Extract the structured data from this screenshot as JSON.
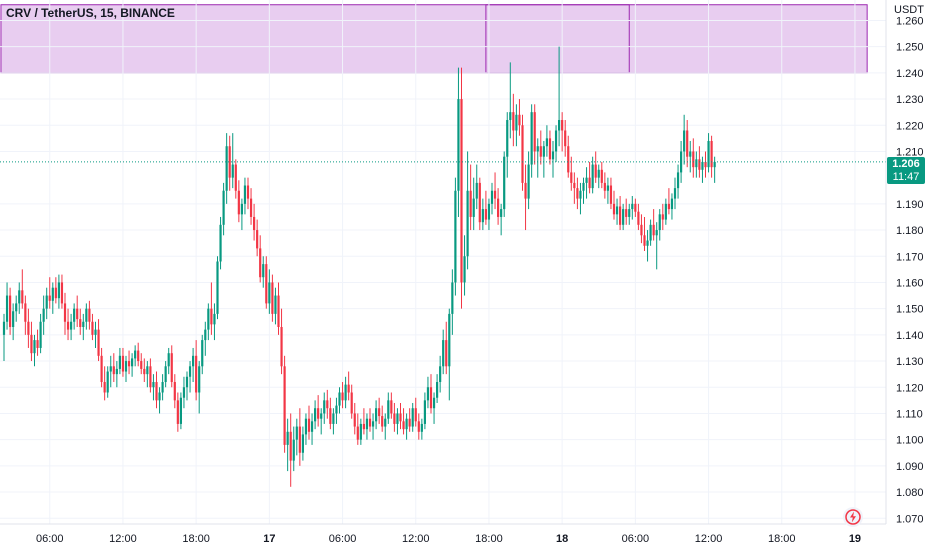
{
  "header": {
    "symbol_title": "CRV / TetherUS, 15, BINANCE",
    "currency": "USDT"
  },
  "price_badge": {
    "value": "1.206",
    "countdown": "11:47"
  },
  "colors": {
    "up": "#089981",
    "down": "#f23645",
    "zone_fill": "#e8cdf0",
    "zone_line": "#9c27b0",
    "grid": "#f0f3fa",
    "last_price_line": "#089981"
  },
  "icons": {
    "logo": "tradingview-lightning-icon"
  },
  "chart_data": {
    "type": "candlestick",
    "title": "CRV / TetherUS, 15, BINANCE",
    "ylim": [
      1.065,
      1.266
    ],
    "y_ticks": [
      "1.260",
      "1.250",
      "1.240",
      "1.230",
      "1.220",
      "1.210",
      "1.190",
      "1.180",
      "1.170",
      "1.160",
      "1.150",
      "1.140",
      "1.130",
      "1.120",
      "1.110",
      "1.100",
      "1.090",
      "1.080",
      "1.070"
    ],
    "x_ticks": [
      {
        "label": "06:00",
        "bar": 15,
        "major": false
      },
      {
        "label": "12:00",
        "bar": 39,
        "major": false
      },
      {
        "label": "18:00",
        "bar": 63,
        "major": false
      },
      {
        "label": "17",
        "bar": 87,
        "major": true
      },
      {
        "label": "06:00",
        "bar": 111,
        "major": false
      },
      {
        "label": "12:00",
        "bar": 135,
        "major": false
      },
      {
        "label": "18:00",
        "bar": 159,
        "major": false
      },
      {
        "label": "18",
        "bar": 183,
        "major": true
      },
      {
        "label": "06:00",
        "bar": 207,
        "major": false
      },
      {
        "label": "12:00",
        "bar": 231,
        "major": false
      },
      {
        "label": "18:00",
        "bar": 255,
        "major": false
      },
      {
        "label": "19",
        "bar": 279,
        "major": true
      }
    ],
    "last_price": 1.206,
    "zones": [
      {
        "y_from": 1.24,
        "y_to": 1.266,
        "bar_from": -1,
        "bar_to": 283
      },
      {
        "y_from": 1.24,
        "y_to": 1.266,
        "bar_from": 158,
        "bar_to": 205
      }
    ],
    "candles": [
      [
        1.14,
        1.148,
        1.13,
        1.145
      ],
      [
        1.145,
        1.16,
        1.142,
        1.155
      ],
      [
        1.155,
        1.158,
        1.14,
        1.143
      ],
      [
        1.143,
        1.152,
        1.138,
        1.149
      ],
      [
        1.149,
        1.155,
        1.145,
        1.152
      ],
      [
        1.152,
        1.16,
        1.148,
        1.157
      ],
      [
        1.157,
        1.165,
        1.15,
        1.152
      ],
      [
        1.152,
        1.155,
        1.14,
        1.145
      ],
      [
        1.145,
        1.15,
        1.135,
        1.14
      ],
      [
        1.14,
        1.145,
        1.13,
        1.133
      ],
      [
        1.133,
        1.14,
        1.128,
        1.138
      ],
      [
        1.138,
        1.142,
        1.132,
        1.135
      ],
      [
        1.135,
        1.148,
        1.133,
        1.145
      ],
      [
        1.145,
        1.155,
        1.14,
        1.15
      ],
      [
        1.15,
        1.158,
        1.146,
        1.155
      ],
      [
        1.155,
        1.162,
        1.15,
        1.153
      ],
      [
        1.153,
        1.16,
        1.148,
        1.158
      ],
      [
        1.158,
        1.162,
        1.152,
        1.154
      ],
      [
        1.154,
        1.163,
        1.15,
        1.16
      ],
      [
        1.16,
        1.163,
        1.15,
        1.152
      ],
      [
        1.152,
        1.156,
        1.14,
        1.145
      ],
      [
        1.145,
        1.15,
        1.138,
        1.142
      ],
      [
        1.142,
        1.148,
        1.138,
        1.145
      ],
      [
        1.145,
        1.152,
        1.142,
        1.15
      ],
      [
        1.15,
        1.155,
        1.143,
        1.146
      ],
      [
        1.146,
        1.15,
        1.14,
        1.143
      ],
      [
        1.143,
        1.148,
        1.138,
        1.145
      ],
      [
        1.145,
        1.152,
        1.142,
        1.15
      ],
      [
        1.15,
        1.153,
        1.142,
        1.145
      ],
      [
        1.145,
        1.148,
        1.138,
        1.14
      ],
      [
        1.14,
        1.145,
        1.135,
        1.142
      ],
      [
        1.142,
        1.146,
        1.13,
        1.132
      ],
      [
        1.132,
        1.135,
        1.12,
        1.122
      ],
      [
        1.122,
        1.128,
        1.115,
        1.118
      ],
      [
        1.118,
        1.128,
        1.116,
        1.126
      ],
      [
        1.126,
        1.132,
        1.12,
        1.128
      ],
      [
        1.128,
        1.133,
        1.122,
        1.125
      ],
      [
        1.125,
        1.13,
        1.12,
        1.127
      ],
      [
        1.127,
        1.135,
        1.125,
        1.132
      ],
      [
        1.132,
        1.135,
        1.124,
        1.126
      ],
      [
        1.126,
        1.132,
        1.122,
        1.13
      ],
      [
        1.13,
        1.134,
        1.125,
        1.128
      ],
      [
        1.128,
        1.133,
        1.124,
        1.131
      ],
      [
        1.131,
        1.136,
        1.128,
        1.134
      ],
      [
        1.134,
        1.137,
        1.128,
        1.13
      ],
      [
        1.13,
        1.133,
        1.125,
        1.127
      ],
      [
        1.127,
        1.131,
        1.122,
        1.125
      ],
      [
        1.125,
        1.13,
        1.12,
        1.128
      ],
      [
        1.128,
        1.131,
        1.118,
        1.12
      ],
      [
        1.12,
        1.125,
        1.115,
        1.122
      ],
      [
        1.122,
        1.126,
        1.112,
        1.115
      ],
      [
        1.115,
        1.12,
        1.11,
        1.118
      ],
      [
        1.118,
        1.125,
        1.115,
        1.122
      ],
      [
        1.122,
        1.13,
        1.12,
        1.128
      ],
      [
        1.128,
        1.135,
        1.125,
        1.133
      ],
      [
        1.133,
        1.136,
        1.12,
        1.122
      ],
      [
        1.122,
        1.125,
        1.112,
        1.115
      ],
      [
        1.115,
        1.118,
        1.103,
        1.106
      ],
      [
        1.106,
        1.118,
        1.104,
        1.116
      ],
      [
        1.116,
        1.124,
        1.112,
        1.12
      ],
      [
        1.12,
        1.126,
        1.115,
        1.124
      ],
      [
        1.124,
        1.13,
        1.118,
        1.128
      ],
      [
        1.128,
        1.135,
        1.122,
        1.132
      ],
      [
        1.132,
        1.138,
        1.115,
        1.118
      ],
      [
        1.118,
        1.13,
        1.11,
        1.128
      ],
      [
        1.128,
        1.14,
        1.125,
        1.138
      ],
      [
        1.138,
        1.145,
        1.132,
        1.142
      ],
      [
        1.142,
        1.152,
        1.138,
        1.15
      ],
      [
        1.15,
        1.16,
        1.14,
        1.144
      ],
      [
        1.144,
        1.152,
        1.138,
        1.148
      ],
      [
        1.148,
        1.17,
        1.146,
        1.168
      ],
      [
        1.168,
        1.185,
        1.165,
        1.182
      ],
      [
        1.182,
        1.198,
        1.178,
        1.195
      ],
      [
        1.195,
        1.217,
        1.19,
        1.212
      ],
      [
        1.212,
        1.216,
        1.195,
        1.2
      ],
      [
        1.2,
        1.217,
        1.196,
        1.205
      ],
      [
        1.205,
        1.207,
        1.192,
        1.195
      ],
      [
        1.195,
        1.199,
        1.183,
        1.186
      ],
      [
        1.186,
        1.192,
        1.18,
        1.19
      ],
      [
        1.19,
        1.2,
        1.186,
        1.197
      ],
      [
        1.197,
        1.2,
        1.188,
        1.192
      ],
      [
        1.192,
        1.196,
        1.182,
        1.185
      ],
      [
        1.185,
        1.19,
        1.176,
        1.18
      ],
      [
        1.18,
        1.184,
        1.17,
        1.173
      ],
      [
        1.173,
        1.178,
        1.16,
        1.162
      ],
      [
        1.162,
        1.17,
        1.158,
        1.167
      ],
      [
        1.167,
        1.17,
        1.15,
        1.152
      ],
      [
        1.152,
        1.165,
        1.148,
        1.16
      ],
      [
        1.16,
        1.163,
        1.145,
        1.148
      ],
      [
        1.148,
        1.158,
        1.144,
        1.155
      ],
      [
        1.155,
        1.16,
        1.14,
        1.143
      ],
      [
        1.143,
        1.15,
        1.125,
        1.128
      ],
      [
        1.128,
        1.132,
        1.095,
        1.098
      ],
      [
        1.098,
        1.108,
        1.088,
        1.103
      ],
      [
        1.103,
        1.11,
        1.082,
        1.092
      ],
      [
        1.092,
        1.105,
        1.088,
        1.1
      ],
      [
        1.1,
        1.108,
        1.094,
        1.105
      ],
      [
        1.105,
        1.112,
        1.09,
        1.095
      ],
      [
        1.095,
        1.105,
        1.092,
        1.102
      ],
      [
        1.102,
        1.11,
        1.098,
        1.108
      ],
      [
        1.108,
        1.113,
        1.1,
        1.103
      ],
      [
        1.103,
        1.11,
        1.098,
        1.107
      ],
      [
        1.107,
        1.115,
        1.104,
        1.112
      ],
      [
        1.112,
        1.117,
        1.105,
        1.108
      ],
      [
        1.108,
        1.112,
        1.102,
        1.11
      ],
      [
        1.11,
        1.118,
        1.106,
        1.115
      ],
      [
        1.115,
        1.119,
        1.108,
        1.112
      ],
      [
        1.112,
        1.116,
        1.104,
        1.106
      ],
      [
        1.106,
        1.112,
        1.102,
        1.11
      ],
      [
        1.11,
        1.116,
        1.106,
        1.113
      ],
      [
        1.113,
        1.12,
        1.11,
        1.118
      ],
      [
        1.118,
        1.122,
        1.112,
        1.115
      ],
      [
        1.115,
        1.124,
        1.112,
        1.121
      ],
      [
        1.121,
        1.126,
        1.115,
        1.118
      ],
      [
        1.118,
        1.121,
        1.108,
        1.11
      ],
      [
        1.11,
        1.114,
        1.102,
        1.105
      ],
      [
        1.105,
        1.11,
        1.098,
        1.1
      ],
      [
        1.1,
        1.108,
        1.098,
        1.106
      ],
      [
        1.106,
        1.112,
        1.102,
        1.104
      ],
      [
        1.104,
        1.11,
        1.1,
        1.108
      ],
      [
        1.108,
        1.112,
        1.103,
        1.105
      ],
      [
        1.105,
        1.11,
        1.1,
        1.107
      ],
      [
        1.107,
        1.115,
        1.104,
        1.112
      ],
      [
        1.112,
        1.116,
        1.106,
        1.109
      ],
      [
        1.109,
        1.113,
        1.103,
        1.105
      ],
      [
        1.105,
        1.11,
        1.1,
        1.108
      ],
      [
        1.108,
        1.118,
        1.106,
        1.115
      ],
      [
        1.115,
        1.118,
        1.108,
        1.11
      ],
      [
        1.11,
        1.114,
        1.103,
        1.106
      ],
      [
        1.106,
        1.112,
        1.102,
        1.11
      ],
      [
        1.11,
        1.114,
        1.104,
        1.107
      ],
      [
        1.107,
        1.112,
        1.102,
        1.104
      ],
      [
        1.104,
        1.11,
        1.1,
        1.108
      ],
      [
        1.108,
        1.112,
        1.103,
        1.105
      ],
      [
        1.105,
        1.114,
        1.103,
        1.112
      ],
      [
        1.112,
        1.116,
        1.105,
        1.107
      ],
      [
        1.107,
        1.11,
        1.1,
        1.103
      ],
      [
        1.103,
        1.108,
        1.1,
        1.106
      ],
      [
        1.106,
        1.118,
        1.104,
        1.115
      ],
      [
        1.115,
        1.124,
        1.112,
        1.12
      ],
      [
        1.12,
        1.125,
        1.11,
        1.112
      ],
      [
        1.112,
        1.118,
        1.106,
        1.116
      ],
      [
        1.116,
        1.125,
        1.114,
        1.122
      ],
      [
        1.122,
        1.132,
        1.118,
        1.128
      ],
      [
        1.128,
        1.142,
        1.125,
        1.138
      ],
      [
        1.138,
        1.145,
        1.125,
        1.128
      ],
      [
        1.128,
        1.15,
        1.115,
        1.148
      ],
      [
        1.148,
        1.165,
        1.14,
        1.16
      ],
      [
        1.16,
        1.2,
        1.155,
        1.195
      ],
      [
        1.195,
        1.242,
        1.185,
        1.23
      ],
      [
        1.23,
        1.242,
        1.15,
        1.16
      ],
      [
        1.16,
        1.178,
        1.155,
        1.17
      ],
      [
        1.17,
        1.21,
        1.165,
        1.195
      ],
      [
        1.195,
        1.205,
        1.18,
        1.185
      ],
      [
        1.185,
        1.2,
        1.18,
        1.192
      ],
      [
        1.192,
        1.205,
        1.188,
        1.198
      ],
      [
        1.198,
        1.2,
        1.18,
        1.183
      ],
      [
        1.183,
        1.192,
        1.18,
        1.188
      ],
      [
        1.188,
        1.195,
        1.182,
        1.184
      ],
      [
        1.184,
        1.192,
        1.18,
        1.19
      ],
      [
        1.19,
        1.198,
        1.186,
        1.195
      ],
      [
        1.195,
        1.202,
        1.188,
        1.192
      ],
      [
        1.192,
        1.196,
        1.182,
        1.185
      ],
      [
        1.185,
        1.19,
        1.178,
        1.188
      ],
      [
        1.188,
        1.21,
        1.185,
        1.208
      ],
      [
        1.208,
        1.225,
        1.2,
        1.222
      ],
      [
        1.222,
        1.244,
        1.215,
        1.225
      ],
      [
        1.225,
        1.232,
        1.212,
        1.218
      ],
      [
        1.218,
        1.228,
        1.212,
        1.224
      ],
      [
        1.224,
        1.23,
        1.216,
        1.22
      ],
      [
        1.22,
        1.224,
        1.195,
        1.198
      ],
      [
        1.198,
        1.205,
        1.18,
        1.192
      ],
      [
        1.192,
        1.21,
        1.188,
        1.205
      ],
      [
        1.205,
        1.228,
        1.2,
        1.225
      ],
      [
        1.225,
        1.228,
        1.205,
        1.21
      ],
      [
        1.21,
        1.215,
        1.2,
        1.212
      ],
      [
        1.212,
        1.218,
        1.205,
        1.208
      ],
      [
        1.208,
        1.214,
        1.2,
        1.212
      ],
      [
        1.212,
        1.22,
        1.208,
        1.215
      ],
      [
        1.215,
        1.218,
        1.205,
        1.207
      ],
      [
        1.207,
        1.214,
        1.2,
        1.21
      ],
      [
        1.21,
        1.22,
        1.206,
        1.218
      ],
      [
        1.218,
        1.25,
        1.212,
        1.222
      ],
      [
        1.222,
        1.225,
        1.21,
        1.218
      ],
      [
        1.218,
        1.222,
        1.208,
        1.212
      ],
      [
        1.212,
        1.216,
        1.2,
        1.202
      ],
      [
        1.202,
        1.208,
        1.195,
        1.198
      ],
      [
        1.198,
        1.202,
        1.19,
        1.196
      ],
      [
        1.196,
        1.2,
        1.188,
        1.192
      ],
      [
        1.192,
        1.198,
        1.186,
        1.195
      ],
      [
        1.195,
        1.2,
        1.19,
        1.198
      ],
      [
        1.198,
        1.204,
        1.192,
        1.2
      ],
      [
        1.2,
        1.206,
        1.194,
        1.196
      ],
      [
        1.196,
        1.208,
        1.194,
        1.205
      ],
      [
        1.205,
        1.21,
        1.198,
        1.2
      ],
      [
        1.2,
        1.205,
        1.196,
        1.203
      ],
      [
        1.203,
        1.206,
        1.196,
        1.198
      ],
      [
        1.198,
        1.202,
        1.192,
        1.195
      ],
      [
        1.195,
        1.2,
        1.19,
        1.197
      ],
      [
        1.197,
        1.2,
        1.188,
        1.19
      ],
      [
        1.19,
        1.195,
        1.184,
        1.186
      ],
      [
        1.186,
        1.192,
        1.182,
        1.189
      ],
      [
        1.189,
        1.193,
        1.18,
        1.182
      ],
      [
        1.182,
        1.19,
        1.18,
        1.188
      ],
      [
        1.188,
        1.192,
        1.182,
        1.185
      ],
      [
        1.185,
        1.19,
        1.182,
        1.188
      ],
      [
        1.188,
        1.193,
        1.184,
        1.19
      ],
      [
        1.19,
        1.192,
        1.185,
        1.187
      ],
      [
        1.187,
        1.19,
        1.18,
        1.182
      ],
      [
        1.182,
        1.186,
        1.175,
        1.178
      ],
      [
        1.178,
        1.185,
        1.172,
        1.174
      ],
      [
        1.174,
        1.18,
        1.168,
        1.176
      ],
      [
        1.176,
        1.184,
        1.174,
        1.182
      ],
      [
        1.182,
        1.188,
        1.176,
        1.178
      ],
      [
        1.178,
        1.183,
        1.165,
        1.18
      ],
      [
        1.18,
        1.188,
        1.176,
        1.186
      ],
      [
        1.186,
        1.19,
        1.18,
        1.184
      ],
      [
        1.184,
        1.192,
        1.182,
        1.19
      ],
      [
        1.19,
        1.196,
        1.186,
        1.188
      ],
      [
        1.188,
        1.194,
        1.184,
        1.192
      ],
      [
        1.192,
        1.2,
        1.188,
        1.196
      ],
      [
        1.196,
        1.205,
        1.192,
        1.202
      ],
      [
        1.202,
        1.214,
        1.198,
        1.21
      ],
      [
        1.21,
        1.224,
        1.205,
        1.218
      ],
      [
        1.218,
        1.222,
        1.204,
        1.208
      ],
      [
        1.208,
        1.214,
        1.202,
        1.21
      ],
      [
        1.21,
        1.215,
        1.2,
        1.204
      ],
      [
        1.204,
        1.21,
        1.2,
        1.207
      ],
      [
        1.207,
        1.212,
        1.2,
        1.203
      ],
      [
        1.203,
        1.208,
        1.198,
        1.206
      ],
      [
        1.206,
        1.21,
        1.2,
        1.204
      ],
      [
        1.204,
        1.217,
        1.202,
        1.214
      ],
      [
        1.214,
        1.216,
        1.2,
        1.204
      ],
      [
        1.204,
        1.208,
        1.198,
        1.206
      ]
    ]
  }
}
